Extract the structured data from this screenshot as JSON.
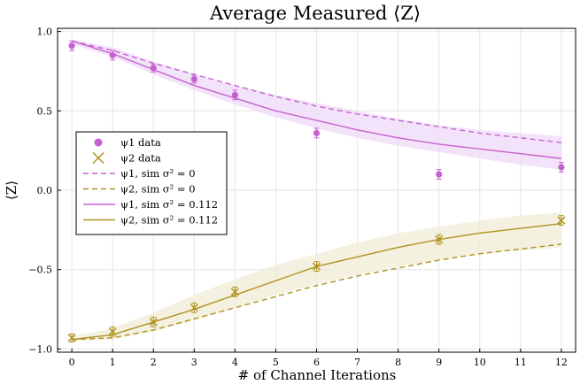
{
  "chart_data": {
    "type": "line",
    "title": "Average Measured ⟨Z⟩",
    "xlabel": "# of Channel Iterations",
    "ylabel": "⟨Z⟩",
    "xlim": [
      -0.35,
      12.35
    ],
    "ylim": [
      -1.02,
      1.02
    ],
    "x_ticks": [
      0,
      1,
      2,
      3,
      4,
      5,
      6,
      7,
      8,
      9,
      10,
      11,
      12
    ],
    "x_tick_labels": [
      "0",
      "1",
      "2",
      "3",
      "4",
      "5",
      "6",
      "7",
      "8",
      "9",
      "10",
      "11",
      "12"
    ],
    "y_ticks": [
      -1.0,
      -0.5,
      0.0,
      0.5,
      1.0
    ],
    "y_tick_labels": [
      "−1.0",
      "−0.5",
      "0.0",
      "0.5",
      "1.0"
    ],
    "grid": true,
    "legend_position": "left-middle",
    "colors": {
      "psi1": "#c462cf",
      "psi1_band": "#efd9f8",
      "psi2": "#b0911f",
      "psi2_band": "#f0ecd6"
    },
    "series": [
      {
        "name": "ψ1 data",
        "legend_label": "ψ1 data",
        "kind": "scatter-circle",
        "color": "#c462cf",
        "x": [
          0,
          1,
          2,
          3,
          4,
          6,
          9,
          12
        ],
        "y": [
          0.91,
          0.85,
          0.77,
          0.7,
          0.6,
          0.36,
          0.1,
          0.145
        ],
        "err": [
          0.03,
          0.03,
          0.025,
          0.025,
          0.03,
          0.03,
          0.03,
          0.03
        ]
      },
      {
        "name": "ψ2 data",
        "legend_label": "ψ2 data",
        "kind": "scatter-x",
        "color": "#b0911f",
        "x": [
          0,
          1,
          2,
          3,
          4,
          6,
          9,
          12
        ],
        "y": [
          -0.93,
          -0.89,
          -0.83,
          -0.74,
          -0.64,
          -0.48,
          -0.31,
          -0.19
        ],
        "err": [
          0.025,
          0.03,
          0.03,
          0.03,
          0.03,
          0.03,
          0.03,
          0.03
        ]
      },
      {
        "name": "ψ1, sim σ² = 0",
        "legend_label": "ψ1, sim σ² = 0",
        "kind": "line-dashed",
        "color": "#c462cf",
        "x": [
          0,
          1,
          2,
          3,
          4,
          5,
          6,
          7,
          8,
          9,
          10,
          11,
          12
        ],
        "y": [
          0.94,
          0.88,
          0.8,
          0.73,
          0.66,
          0.59,
          0.53,
          0.48,
          0.44,
          0.4,
          0.36,
          0.33,
          0.3
        ]
      },
      {
        "name": "ψ2, sim σ² = 0",
        "legend_label": "ψ2, sim σ² = 0",
        "kind": "line-dashed",
        "color": "#b0911f",
        "x": [
          0,
          1,
          2,
          3,
          4,
          5,
          6,
          7,
          8,
          9,
          10,
          11,
          12
        ],
        "y": [
          -0.94,
          -0.93,
          -0.88,
          -0.81,
          -0.74,
          -0.67,
          -0.6,
          -0.54,
          -0.49,
          -0.44,
          -0.4,
          -0.37,
          -0.34
        ]
      },
      {
        "name": "ψ1, sim σ² = 0.112",
        "legend_label": "ψ1, sim σ² = 0.112",
        "kind": "line-solid-band",
        "color": "#c462cf",
        "x": [
          0,
          1,
          2,
          3,
          4,
          5,
          6,
          7,
          8,
          9,
          10,
          11,
          12
        ],
        "y": [
          0.94,
          0.86,
          0.76,
          0.66,
          0.58,
          0.5,
          0.44,
          0.38,
          0.33,
          0.29,
          0.26,
          0.23,
          0.2
        ],
        "band_low": [
          0.92,
          0.84,
          0.73,
          0.63,
          0.54,
          0.46,
          0.39,
          0.33,
          0.28,
          0.24,
          0.2,
          0.16,
          0.13
        ],
        "band_high": [
          0.95,
          0.9,
          0.81,
          0.73,
          0.66,
          0.6,
          0.55,
          0.5,
          0.45,
          0.41,
          0.38,
          0.36,
          0.34
        ]
      },
      {
        "name": "ψ2, sim σ² = 0.112",
        "legend_label": "ψ2, sim σ² = 0.112",
        "kind": "line-solid-band",
        "color": "#b0911f",
        "x": [
          0,
          1,
          2,
          3,
          4,
          5,
          6,
          7,
          8,
          9,
          10,
          11,
          12
        ],
        "y": [
          -0.94,
          -0.91,
          -0.83,
          -0.75,
          -0.66,
          -0.57,
          -0.48,
          -0.42,
          -0.36,
          -0.31,
          -0.27,
          -0.24,
          -0.21
        ],
        "band_low": [
          -0.95,
          -0.94,
          -0.89,
          -0.82,
          -0.74,
          -0.66,
          -0.59,
          -0.53,
          -0.48,
          -0.44,
          -0.4,
          -0.38,
          -0.36
        ],
        "band_high": [
          -0.92,
          -0.87,
          -0.77,
          -0.66,
          -0.56,
          -0.47,
          -0.4,
          -0.33,
          -0.27,
          -0.23,
          -0.19,
          -0.16,
          -0.14
        ]
      }
    ]
  }
}
